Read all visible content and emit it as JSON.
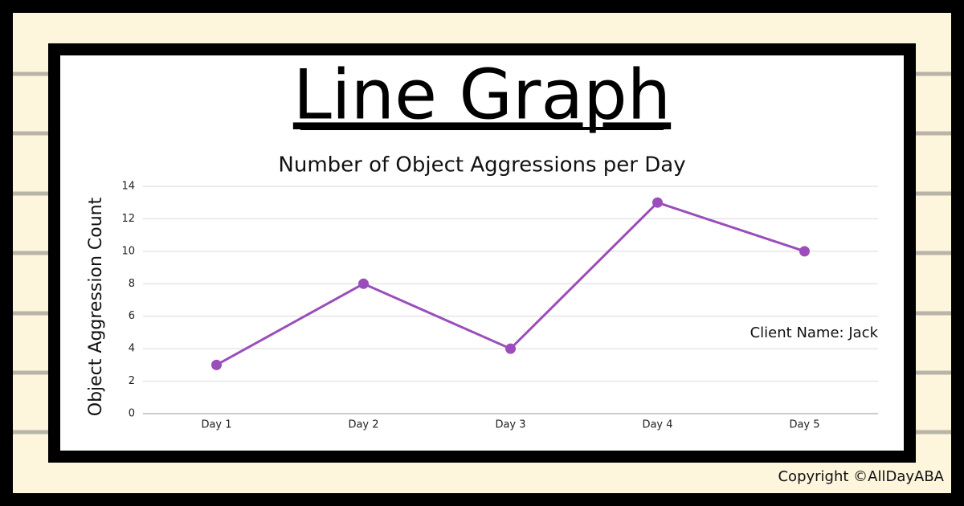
{
  "chart_data": {
    "type": "line",
    "title": "Line Graph",
    "subtitle": "Number of Object Aggressions per Day",
    "ylabel": "Object Aggression Count",
    "categories": [
      "Day 1",
      "Day 2",
      "Day 3",
      "Day 4",
      "Day 5"
    ],
    "series": [
      {
        "name": "Object Aggressions",
        "color": "#9b4dbb",
        "values": [
          3,
          8,
          4,
          13,
          10
        ]
      }
    ],
    "ylim": [
      0,
      14
    ],
    "yticks": [
      0,
      2,
      4,
      6,
      8,
      10,
      12,
      14
    ],
    "grid": true,
    "annotation": "Client Name: Jack"
  },
  "copyright": "Copyright ©AllDayABA"
}
